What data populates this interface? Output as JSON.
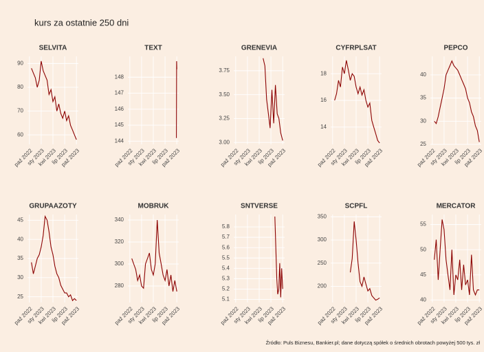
{
  "title": "kurs za ostatnie 250 dni",
  "caption": "Źródło: Puls Biznesu, Bankier.pl; dane dotyczą spółek o średnich obrotach powyżej 500 tys. zł",
  "chart_data": [
    {
      "type": "line",
      "title": "SELVITA",
      "color": "#8b0000",
      "grid": true,
      "x": [
        0.5,
        1,
        1.5,
        2,
        2.5,
        3,
        3.5,
        4,
        4.5,
        5,
        5.5,
        6,
        6.5,
        7,
        7.5,
        8,
        8.5,
        9,
        9.5,
        10,
        10.5,
        11,
        11.5,
        12
      ],
      "values": [
        88,
        86,
        84,
        80,
        83,
        91,
        87,
        85,
        83,
        77,
        79,
        74,
        76,
        70,
        73,
        69,
        67,
        70,
        66,
        68,
        64,
        62,
        60,
        58
      ],
      "xlim": [
        -0.5,
        12.5
      ],
      "xticks": [
        {
          "value": 0,
          "label": "paź 2022"
        },
        {
          "value": 3,
          "label": "sty 2023"
        },
        {
          "value": 6,
          "label": "kwi 2023"
        },
        {
          "value": 9,
          "label": "lip 2023"
        },
        {
          "value": 12,
          "label": "paź 2023"
        }
      ],
      "ylim": [
        56,
        93
      ],
      "yticks": [
        60,
        70,
        80,
        90
      ]
    },
    {
      "type": "line",
      "title": "TEXT",
      "color": "#8b0000",
      "grid": true,
      "x": [
        11.9,
        11.95,
        12
      ],
      "values": [
        144.2,
        149,
        148.5
      ],
      "xlim": [
        -0.5,
        12.5
      ],
      "xticks": [
        {
          "value": 0,
          "label": "paź 2022"
        },
        {
          "value": 3,
          "label": "sty 2023"
        },
        {
          "value": 6,
          "label": "kwi 2023"
        },
        {
          "value": 9,
          "label": "lip 2023"
        },
        {
          "value": 12,
          "label": "paź 2023"
        }
      ],
      "ylim": [
        143.8,
        149.3
      ],
      "yticks": [
        144,
        145,
        146,
        147,
        148
      ]
    },
    {
      "type": "line",
      "title": "GRENEVIA",
      "color": "#8b0000",
      "grid": true,
      "x": [
        7,
        7.45,
        7.9,
        8.35,
        8.8,
        9.25,
        9.7,
        10.15,
        10.6,
        11.05,
        11.5,
        12
      ],
      "values": [
        3.88,
        3.8,
        3.45,
        3.3,
        3.15,
        3.55,
        3.2,
        3.6,
        3.3,
        3.25,
        3.1,
        3.02
      ],
      "xlim": [
        -0.5,
        12.5
      ],
      "xticks": [
        {
          "value": 0,
          "label": "paź 2022"
        },
        {
          "value": 3,
          "label": "sty 2023"
        },
        {
          "value": 6,
          "label": "kwi 2023"
        },
        {
          "value": 9,
          "label": "lip 2023"
        },
        {
          "value": 12,
          "label": "paź 2023"
        }
      ],
      "ylim": [
        2.98,
        3.9
      ],
      "yticks": [
        {
          "value": 3,
          "label": "3.00"
        },
        {
          "value": 3.25,
          "label": "3.25"
        },
        {
          "value": 3.5,
          "label": "3.50"
        },
        {
          "value": 3.75,
          "label": "3.75"
        }
      ]
    },
    {
      "type": "line",
      "title": "CYFRPLSAT",
      "color": "#8b0000",
      "grid": true,
      "x": [
        0.5,
        1,
        1.5,
        2,
        2.5,
        3,
        3.5,
        4,
        4.5,
        5,
        5.5,
        6,
        6.5,
        7,
        7.5,
        8,
        8.5,
        9,
        9.5,
        10,
        10.5,
        11,
        11.5,
        12
      ],
      "values": [
        16,
        16.5,
        17.5,
        17,
        18.5,
        18,
        19,
        18.3,
        17.5,
        18,
        17.8,
        17,
        16.5,
        17,
        16.4,
        16.8,
        16,
        15.5,
        15.8,
        14.5,
        14,
        13.5,
        13,
        12.8
      ],
      "xlim": [
        -0.5,
        12.5
      ],
      "xticks": [
        {
          "value": 0,
          "label": "paź 2022"
        },
        {
          "value": 3,
          "label": "sty 2023"
        },
        {
          "value": 6,
          "label": "kwi 2023"
        },
        {
          "value": 9,
          "label": "lip 2023"
        },
        {
          "value": 12,
          "label": "paź 2023"
        }
      ],
      "ylim": [
        12.7,
        19.3
      ],
      "yticks": [
        14,
        16,
        18
      ]
    },
    {
      "type": "line",
      "title": "PEPCO",
      "color": "#8b0000",
      "grid": true,
      "x": [
        0.5,
        1,
        1.5,
        2,
        2.5,
        3,
        3.5,
        4,
        4.5,
        5,
        5.5,
        6,
        6.5,
        7,
        7.5,
        8,
        8.5,
        9,
        9.5,
        10,
        10.5,
        11,
        11.5,
        12
      ],
      "values": [
        30,
        29.5,
        31,
        33,
        35,
        37,
        40,
        41,
        42,
        43,
        42,
        41.5,
        41,
        40,
        39,
        38,
        37,
        35,
        34,
        32,
        31,
        29,
        28,
        25.5
      ],
      "xlim": [
        -0.5,
        12.5
      ],
      "xticks": [
        {
          "value": 0,
          "label": "paź 2022"
        },
        {
          "value": 3,
          "label": "sty 2023"
        },
        {
          "value": 6,
          "label": "kwi 2023"
        },
        {
          "value": 9,
          "label": "lip 2023"
        },
        {
          "value": 12,
          "label": "paź 2023"
        }
      ],
      "ylim": [
        25,
        44
      ],
      "yticks": [
        25,
        30,
        35,
        40
      ]
    },
    {
      "type": "line",
      "title": "GRUPAAZOTY",
      "color": "#8b0000",
      "grid": true,
      "x": [
        0.5,
        1,
        1.5,
        2,
        2.5,
        3,
        3.5,
        4,
        4.5,
        5,
        5.5,
        6,
        6.5,
        7,
        7.5,
        8,
        8.5,
        9,
        9.5,
        10,
        10.5,
        11,
        11.5,
        12
      ],
      "values": [
        34,
        31,
        33,
        35,
        36,
        38,
        41,
        46,
        45,
        42,
        38,
        36,
        33,
        31,
        30,
        28,
        27,
        26,
        26,
        25,
        25.5,
        24,
        24.5,
        24
      ],
      "xlim": [
        -0.5,
        12.5
      ],
      "xticks": [
        {
          "value": 0,
          "label": "paź 2022"
        },
        {
          "value": 3,
          "label": "sty 2023"
        },
        {
          "value": 6,
          "label": "kwi 2023"
        },
        {
          "value": 9,
          "label": "lip 2023"
        },
        {
          "value": 12,
          "label": "paź 2023"
        }
      ],
      "ylim": [
        23.5,
        46.5
      ],
      "yticks": [
        25,
        30,
        35,
        40,
        45
      ]
    },
    {
      "type": "line",
      "title": "MOBRUK",
      "color": "#8b0000",
      "grid": true,
      "x": [
        0.5,
        1,
        1.5,
        2,
        2.5,
        3,
        3.5,
        4,
        4.5,
        5,
        5.5,
        6,
        6.5,
        7,
        7.5,
        8,
        8.5,
        9,
        9.5,
        10,
        10.5,
        11,
        11.5,
        12
      ],
      "values": [
        305,
        300,
        295,
        285,
        290,
        280,
        278,
        300,
        305,
        310,
        295,
        290,
        300,
        340,
        310,
        300,
        290,
        285,
        295,
        280,
        290,
        275,
        285,
        275
      ],
      "xlim": [
        -0.5,
        12.5
      ],
      "xticks": [
        {
          "value": 0,
          "label": "paź 2022"
        },
        {
          "value": 3,
          "label": "sty 2023"
        },
        {
          "value": 6,
          "label": "kwi 2023"
        },
        {
          "value": 9,
          "label": "lip 2023"
        },
        {
          "value": 12,
          "label": "paź 2023"
        }
      ],
      "ylim": [
        265,
        345
      ],
      "yticks": [
        280,
        300,
        320,
        340
      ]
    },
    {
      "type": "line",
      "title": "SNTVERSE",
      "color": "#8b0000",
      "grid": true,
      "x": [
        10,
        10.25,
        10.5,
        10.75,
        11,
        11.25,
        11.5,
        11.75,
        12
      ],
      "values": [
        5.9,
        5.6,
        5.3,
        5.15,
        5.2,
        5.45,
        5.12,
        5.4,
        5.2
      ],
      "xlim": [
        -0.5,
        12.5
      ],
      "xticks": [
        {
          "value": 0,
          "label": "paź 2022"
        },
        {
          "value": 3,
          "label": "sty 2023"
        },
        {
          "value": 6,
          "label": "kwi 2023"
        },
        {
          "value": 9,
          "label": "lip 2023"
        },
        {
          "value": 12,
          "label": "paź 2023"
        }
      ],
      "ylim": [
        5.07,
        5.92
      ],
      "yticks": [
        5.1,
        5.2,
        5.3,
        5.4,
        5.5,
        5.6,
        5.7,
        5.8
      ]
    },
    {
      "type": "line",
      "title": "SCPFL",
      "color": "#8b0000",
      "grid": true,
      "x": [
        4.5,
        5,
        5.5,
        6,
        6.5,
        7,
        7.5,
        8,
        8.5,
        9,
        9.5,
        10,
        10.5,
        11,
        11.5,
        12
      ],
      "values": [
        230,
        260,
        340,
        300,
        250,
        210,
        200,
        220,
        205,
        190,
        195,
        180,
        175,
        170,
        172,
        175
      ],
      "xlim": [
        -0.5,
        12.5
      ],
      "xticks": [
        {
          "value": 0,
          "label": "paź 2022"
        },
        {
          "value": 3,
          "label": "sty 2023"
        },
        {
          "value": 6,
          "label": "kwi 2023"
        },
        {
          "value": 9,
          "label": "lip 2023"
        },
        {
          "value": 12,
          "label": "paź 2023"
        }
      ],
      "ylim": [
        165,
        355
      ],
      "yticks": [
        200,
        250,
        300,
        350
      ]
    },
    {
      "type": "line",
      "title": "MERCATOR",
      "color": "#8b0000",
      "grid": true,
      "x": [
        0.5,
        1,
        1.5,
        2,
        2.5,
        3,
        3.5,
        4,
        4.5,
        5,
        5.5,
        6,
        6.5,
        7,
        7.5,
        8,
        8.5,
        9,
        9.5,
        10,
        10.5,
        11,
        11.5,
        12
      ],
      "values": [
        48,
        52,
        44,
        50,
        56,
        54,
        48,
        45,
        42,
        50,
        41,
        45,
        44,
        48,
        42,
        47,
        43,
        44,
        41,
        49,
        42,
        41,
        42,
        42
      ],
      "xlim": [
        -0.5,
        12.5
      ],
      "xticks": [
        {
          "value": 0,
          "label": "paź 2022"
        },
        {
          "value": 3,
          "label": "sty 2023"
        },
        {
          "value": 6,
          "label": "kwi 2023"
        },
        {
          "value": 9,
          "label": "lip 2023"
        },
        {
          "value": 12,
          "label": "paź 2023"
        }
      ],
      "ylim": [
        39.5,
        57
      ],
      "yticks": [
        40,
        45,
        50,
        55
      ]
    }
  ]
}
